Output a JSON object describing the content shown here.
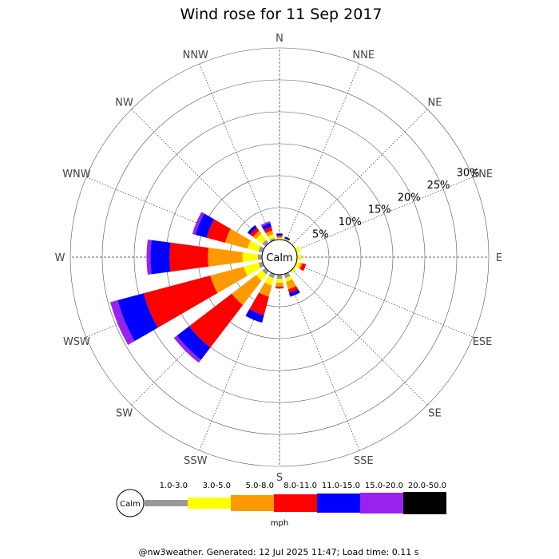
{
  "chart_data": {
    "type": "wind-rose",
    "title": "Wind rose for 11 Sep 2017",
    "directions": [
      "N",
      "NNE",
      "NE",
      "ENE",
      "E",
      "ESE",
      "SE",
      "SSE",
      "S",
      "SSW",
      "SW",
      "WSW",
      "W",
      "WNW",
      "NW",
      "NNW"
    ],
    "radial_axis": {
      "ticks": [
        "5%",
        "10%",
        "15%",
        "20%",
        "25%",
        "30%"
      ],
      "max_percent": 30,
      "label_direction": "ENE"
    },
    "center_label": "Calm",
    "speed_bins": [
      {
        "label": "1.0-3.0",
        "color": "#999999"
      },
      {
        "label": "3.0-5.0",
        "color": "#ffff00"
      },
      {
        "label": "5.0-8.0",
        "color": "#ff9900"
      },
      {
        "label": "8.0-11.0",
        "color": "#ff0000"
      },
      {
        "label": "11.0-15.0",
        "color": "#0000ff"
      },
      {
        "label": "15.0-20.0",
        "color": "#9922ee"
      },
      {
        "label": "20.0-50.0",
        "color": "#000000"
      }
    ],
    "units": "mph",
    "series": [
      {
        "direction": "N",
        "values": [
          0,
          0.2,
          0.2,
          0.2,
          0.3,
          0,
          0
        ]
      },
      {
        "direction": "NNE",
        "values": [
          0,
          0.2,
          0,
          0,
          0.3,
          0,
          0
        ]
      },
      {
        "direction": "NE",
        "values": [
          0,
          0,
          0,
          0,
          0,
          0,
          0
        ]
      },
      {
        "direction": "ENE",
        "values": [
          0,
          0.6,
          0,
          0,
          0,
          0,
          0
        ]
      },
      {
        "direction": "E",
        "values": [
          0,
          0.6,
          0,
          0,
          0,
          0,
          0
        ]
      },
      {
        "direction": "ESE",
        "values": [
          0,
          0.6,
          0.3,
          0.6,
          0,
          0,
          0
        ]
      },
      {
        "direction": "SE",
        "values": [
          0,
          0.4,
          0,
          0,
          0,
          0,
          0
        ]
      },
      {
        "direction": "SSE",
        "values": [
          0.6,
          0.6,
          1.2,
          0.6,
          0.6,
          0,
          0
        ]
      },
      {
        "direction": "S",
        "values": [
          0.6,
          0.6,
          0.6,
          0.3,
          0,
          0,
          0
        ]
      },
      {
        "direction": "SSW",
        "values": [
          0.6,
          1.2,
          1.8,
          3.0,
          1.2,
          0,
          0
        ]
      },
      {
        "direction": "SW",
        "values": [
          0.6,
          1.2,
          4.8,
          8.4,
          2.4,
          0.6,
          0
        ]
      },
      {
        "direction": "WSW",
        "values": [
          0.6,
          2.4,
          5.4,
          10.8,
          4.2,
          1.2,
          0
        ]
      },
      {
        "direction": "W",
        "values": [
          0.6,
          2.4,
          5.4,
          6.0,
          3.0,
          0.6,
          0
        ]
      },
      {
        "direction": "WNW",
        "values": [
          0.6,
          1.8,
          3.6,
          3.0,
          1.8,
          0.5,
          0
        ]
      },
      {
        "direction": "NW",
        "values": [
          0.6,
          1.2,
          0.6,
          0.6,
          0.5,
          0,
          0
        ]
      },
      {
        "direction": "NNW",
        "values": [
          0.3,
          0.6,
          0.6,
          0.6,
          0.6,
          0.3,
          0
        ]
      }
    ],
    "grid": true
  },
  "footer": "@nw3weather. Generated: 12 Jul 2025 11:47; Load time: 0.11 s",
  "colors": {
    "calm": "#999999",
    "calm_circle_fill": "#ffffff",
    "grid": "#000000"
  }
}
